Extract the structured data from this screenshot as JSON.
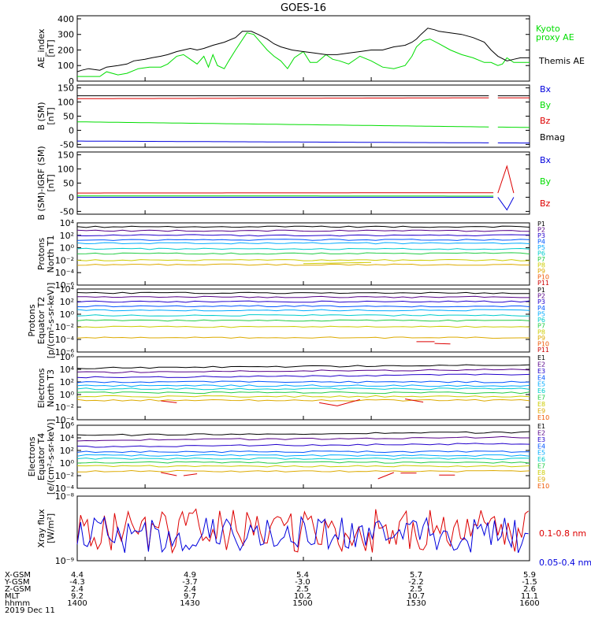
{
  "title": "GOES-16",
  "colors": {
    "black": "#000000",
    "green": "#00dd00",
    "red": "#dd0000",
    "blue": "#0000dd",
    "proton_channels": [
      "#000000",
      "#550088",
      "#2200cc",
      "#0055ff",
      "#00aaff",
      "#00cccc",
      "#22cc44",
      "#cccc00",
      "#ddaa00",
      "#ee5500",
      "#cc0000",
      "#880000"
    ]
  },
  "footer": {
    "row_labels": [
      "X-GSM",
      "Y-GSM",
      "Z-GSM",
      "MLT",
      "hhmm",
      "2019 Dec 11"
    ],
    "columns": [
      {
        "x": "4.4",
        "y": "-4.3",
        "z": "2.4",
        "mlt": "9.2",
        "hhmm": "1400"
      },
      {
        "x": "4.9",
        "y": "-3.7",
        "z": "2.4",
        "mlt": "9.7",
        "hhmm": "1430"
      },
      {
        "x": "5.4",
        "y": "-3.0",
        "z": "2.5",
        "mlt": "10.2",
        "hhmm": "1500"
      },
      {
        "x": "5.7",
        "y": "-2.2",
        "z": "2.5",
        "mlt": "10.7",
        "hhmm": "1530"
      },
      {
        "x": "5.9",
        "y": "-1.5",
        "z": "2.6",
        "mlt": "11.1",
        "hhmm": "1600"
      }
    ]
  },
  "chart_data": [
    {
      "type": "line",
      "ylabel": "AE_index\n[nT]",
      "x": [
        1400,
        1600
      ],
      "ylim": [
        0,
        420
      ],
      "ytick_labels": [
        "0",
        "100",
        "200",
        "300",
        "400"
      ],
      "series": [
        {
          "name": "Kyoto\nproxy AE",
          "color": "green",
          "x": [
            1400,
            1407,
            1410,
            1413,
            1418,
            1422,
            1427,
            1432,
            1437,
            1440,
            1444,
            1447,
            1450,
            1453,
            1456,
            1458,
            1460,
            1462,
            1465,
            1467,
            1470,
            1475,
            1478,
            1481,
            1484,
            1487,
            1490,
            1493,
            1496,
            1500,
            1503,
            1506,
            1510,
            1513,
            1516,
            1520,
            1525,
            1530,
            1535,
            1540,
            1545,
            1548,
            1550,
            1553,
            1556,
            1560,
            1565,
            1570,
            1575,
            1580,
            1583,
            1586,
            1588,
            1590,
            1593,
            1596,
            1600
          ],
          "values": [
            30,
            30,
            30,
            60,
            40,
            50,
            80,
            90,
            90,
            110,
            160,
            170,
            140,
            110,
            160,
            90,
            170,
            100,
            80,
            130,
            200,
            310,
            300,
            250,
            200,
            160,
            130,
            80,
            150,
            190,
            120,
            120,
            170,
            140,
            130,
            110,
            160,
            130,
            90,
            80,
            100,
            160,
            220,
            260,
            270,
            240,
            200,
            170,
            150,
            120,
            120,
            100,
            110,
            150,
            120,
            120,
            120
          ]
        },
        {
          "name": "Themis AE",
          "color": "black",
          "x": [
            1400,
            1402,
            1405,
            1410,
            1413,
            1418,
            1422,
            1425,
            1430,
            1433,
            1437,
            1440,
            1444,
            1447,
            1450,
            1453,
            1456,
            1460,
            1465,
            1470,
            1473,
            1475,
            1477,
            1480,
            1484,
            1487,
            1490,
            1495,
            1500,
            1505,
            1510,
            1515,
            1520,
            1525,
            1530,
            1535,
            1540,
            1545,
            1548,
            1550,
            1552,
            1555,
            1558,
            1560,
            1565,
            1570,
            1575,
            1580,
            1583,
            1586,
            1590,
            1593,
            1596,
            1600
          ],
          "values": [
            60,
            70,
            80,
            70,
            90,
            100,
            110,
            130,
            140,
            150,
            160,
            170,
            190,
            200,
            210,
            200,
            210,
            230,
            250,
            280,
            320,
            320,
            320,
            300,
            270,
            240,
            220,
            200,
            190,
            180,
            170,
            170,
            180,
            190,
            200,
            200,
            220,
            230,
            250,
            270,
            300,
            340,
            330,
            320,
            310,
            300,
            280,
            250,
            200,
            160,
            130,
            140,
            150,
            150
          ]
        }
      ]
    },
    {
      "type": "line",
      "ylabel": "B (SM)\n[nT]",
      "ylim": [
        -60,
        160
      ],
      "ytick_labels": [
        "-50",
        "0",
        "50",
        "100",
        "150"
      ],
      "gaps": [
        [
          1583,
          1586
        ]
      ],
      "series": [
        {
          "name": "Bx",
          "color": "blue",
          "start": -38,
          "end": -45
        },
        {
          "name": "By",
          "color": "green",
          "start": 30,
          "end": 10
        },
        {
          "name": "Bz",
          "color": "red",
          "start": 112,
          "end": 115
        },
        {
          "name": "Bmag",
          "color": "black",
          "start": 122,
          "end": 122
        }
      ]
    },
    {
      "type": "line",
      "ylabel": "B (SM)-IGRF (SM)\n[nT]",
      "ylim": [
        -60,
        160
      ],
      "ytick_labels": [
        "-50",
        "0",
        "50",
        "100",
        "150"
      ],
      "series": [
        {
          "name": "Bx",
          "color": "blue",
          "start": 0,
          "end": 0,
          "tail": [
            [
              1586,
              0
            ],
            [
              1590,
              -45
            ],
            [
              1593,
              0
            ]
          ]
        },
        {
          "name": "By",
          "color": "green",
          "start": 5,
          "end": 4
        },
        {
          "name": "Bz",
          "color": "red",
          "start": 15,
          "end": 16,
          "tail": [
            [
              1586,
              15
            ],
            [
              1590,
              110
            ],
            [
              1593,
              15
            ]
          ]
        }
      ]
    },
    {
      "type": "line",
      "ylabel": "Protons\nNorth T1",
      "yscale": "log",
      "ylim": [
        -7,
        4
      ],
      "ytick_labels": [
        "10⁴",
        "10²",
        "10⁰",
        "10⁻²",
        "10⁻⁴",
        "10⁻⁶"
      ],
      "legend": [
        "P1",
        "P2",
        "P3",
        "P4",
        "P5",
        "P6",
        "P7",
        "P8",
        "P9",
        "P10",
        "P11"
      ],
      "levels": [
        3.3,
        2.6,
        1.8,
        1.0,
        0.4,
        -0.6,
        -1.4,
        -2.6,
        -3.4
      ]
    },
    {
      "type": "line",
      "ylabel": "Protons\nEquator T2\n[p/(cm²-s-sr-keV)]",
      "yscale": "log",
      "ylim": [
        -7,
        4
      ],
      "ytick_labels": [
        "10⁴",
        "10²",
        "10⁰",
        "10⁻²",
        "10⁻⁴",
        "10⁻⁶"
      ],
      "legend": [
        "P1",
        "P2",
        "P3",
        "P4",
        "P5",
        "P6",
        "P7",
        "P8",
        "P9",
        "P10",
        "P11"
      ],
      "levels": [
        3.3,
        2.6,
        1.8,
        1.0,
        0.3,
        -0.6,
        -1.5,
        -2.6,
        -4.5
      ]
    },
    {
      "type": "line",
      "ylabel": "Electrons\nNorth T3",
      "yscale": "log",
      "ylim": [
        -4,
        6
      ],
      "ytick_labels": [
        "10⁶",
        "10⁴",
        "10²",
        "10⁰",
        "10⁻²",
        "10⁻⁴"
      ],
      "legend": [
        "E1",
        "E2",
        "E3",
        "E4",
        "E5",
        "E6",
        "E7",
        "E8",
        "E9",
        "E10"
      ],
      "levels": [
        4.2,
        3.5,
        2.7,
        2.0,
        1.4,
        0.9,
        0.3,
        -0.3,
        -0.9
      ]
    },
    {
      "type": "line",
      "ylabel": "Electrons\nEquator T4\n[e/(cm²-s-sr-keV)]",
      "yscale": "log",
      "ylim": [
        -4,
        6
      ],
      "ytick_labels": [
        "10⁶",
        "10⁴",
        "10²",
        "10⁰",
        "10⁻²",
        "10⁻⁴"
      ],
      "legend": [
        "E1",
        "E2",
        "E3",
        "E4",
        "E5",
        "E6",
        "E7",
        "E8",
        "E9",
        "E10"
      ],
      "levels": [
        4.4,
        3.6,
        2.6,
        1.8,
        1.2,
        0.7,
        0.1,
        -0.5,
        -1.3
      ]
    },
    {
      "type": "line",
      "ylabel": "Xray flux\n[W/m²]",
      "yscale": "log",
      "ylim": [
        -9,
        -8
      ],
      "ytick_labels": [
        "10⁻⁸",
        "10⁻⁹"
      ],
      "series": [
        {
          "name": "0.1-0.8 nm",
          "color": "red"
        },
        {
          "name": "0.05-0.4 nm",
          "color": "blue"
        }
      ]
    }
  ]
}
